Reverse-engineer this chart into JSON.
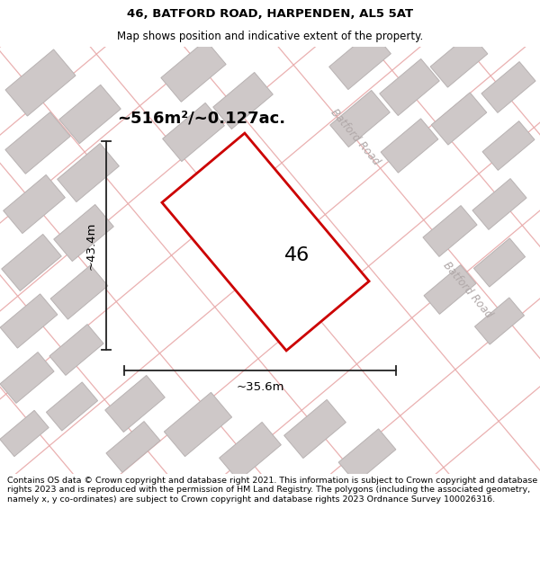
{
  "title": "46, BATFORD ROAD, HARPENDEN, AL5 5AT",
  "subtitle": "Map shows position and indicative extent of the property.",
  "footer": "Contains OS data © Crown copyright and database right 2021. This information is subject to Crown copyright and database rights 2023 and is reproduced with the permission of HM Land Registry. The polygons (including the associated geometry, namely x, y co-ordinates) are subject to Crown copyright and database rights 2023 Ordnance Survey 100026316.",
  "area_label": "~516m²/~0.127ac.",
  "width_label": "~35.6m",
  "height_label": "~43.4m",
  "number_label": "46",
  "map_bg": "#ede8e8",
  "plot_fill": "#ffffff",
  "plot_edge": "#cc0000",
  "road_color": "#e8a8a8",
  "building_fill": "#cec8c8",
  "building_edge": "#b8b2b2",
  "dim_color": "#222222",
  "road_label_color": "#b0a8a8",
  "title_fontsize": 9.5,
  "subtitle_fontsize": 8.5,
  "footer_fontsize": 6.8
}
